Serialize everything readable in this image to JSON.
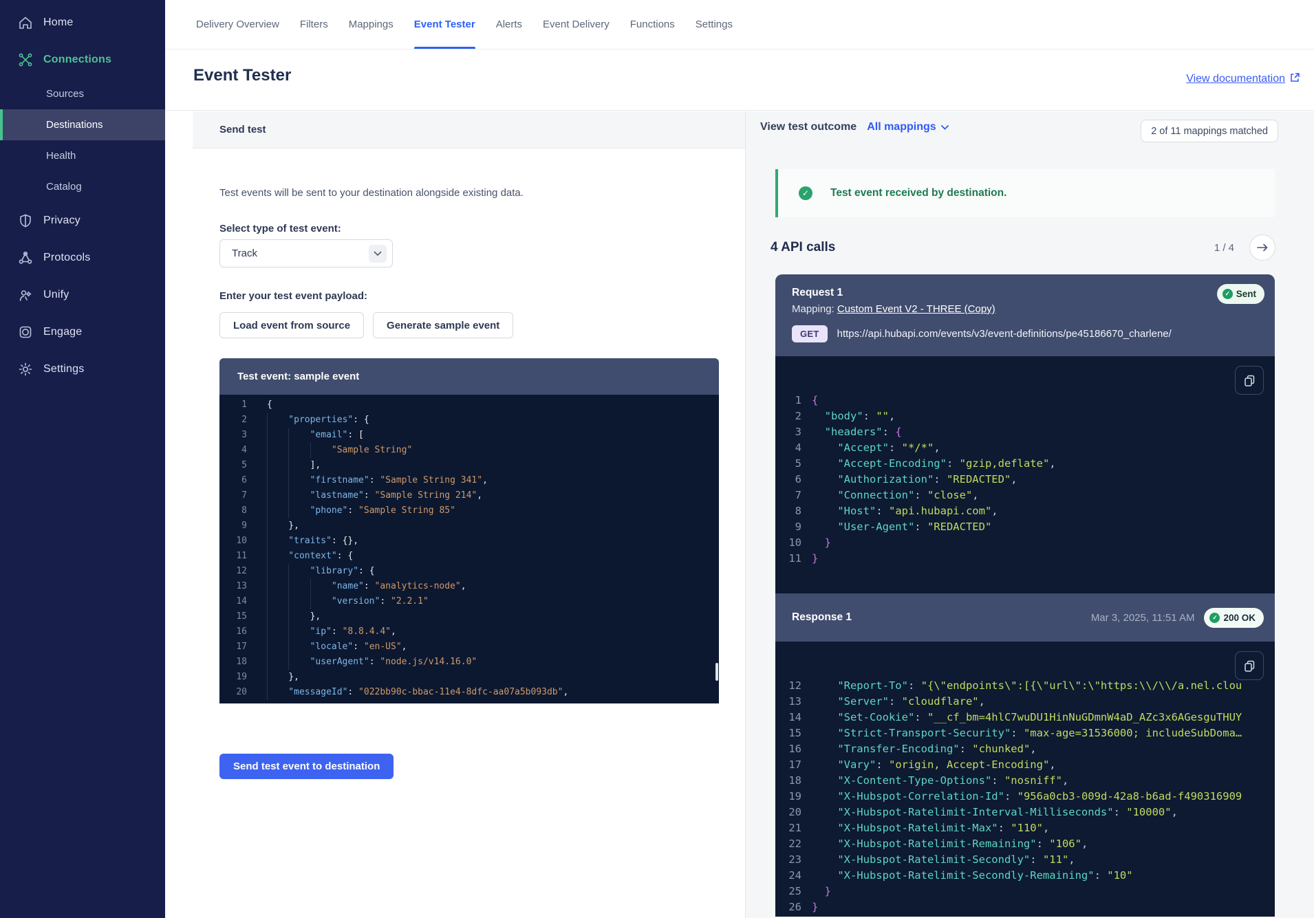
{
  "colors": {
    "brand_green": "#4fc392",
    "accent_blue": "#2e62f5",
    "success_green": "#2aa36d",
    "button_blue": "#3d63f0"
  },
  "sidebar": {
    "main_top": [
      {
        "label": "Home",
        "icon": "home",
        "active": false
      },
      {
        "label": "Connections",
        "icon": "connections",
        "active": true
      }
    ],
    "sub": [
      {
        "label": "Sources",
        "active": false
      },
      {
        "label": "Destinations",
        "active": true
      },
      {
        "label": "Health",
        "active": false
      },
      {
        "label": "Catalog",
        "active": false
      }
    ],
    "main_bottom": [
      {
        "label": "Privacy",
        "icon": "privacy"
      },
      {
        "label": "Protocols",
        "icon": "protocols"
      },
      {
        "label": "Unify",
        "icon": "unify"
      },
      {
        "label": "Engage",
        "icon": "engage"
      },
      {
        "label": "Settings",
        "icon": "settings"
      }
    ]
  },
  "tabs": {
    "items": [
      "Delivery Overview",
      "Filters",
      "Mappings",
      "Event Tester",
      "Alerts",
      "Event Delivery",
      "Functions",
      "Settings"
    ],
    "active": "Event Tester"
  },
  "page": {
    "title": "Event Tester",
    "doc_link": "View documentation"
  },
  "send_test": {
    "header": "Send test",
    "intro": "Test events will be sent to your destination alongside existing data.",
    "select_label": "Select type of test event:",
    "select_value": "Track",
    "payload_label": "Enter your test event payload:",
    "load_button": "Load event from source",
    "generate_button": "Generate sample event",
    "editor_title": "Test event: sample event",
    "send_button": "Send test event to destination",
    "payload_lines": [
      {
        "n": 1,
        "i": 0,
        "t": [
          [
            "b",
            "{"
          ]
        ]
      },
      {
        "n": 2,
        "i": 1,
        "t": [
          [
            "k",
            "\"properties\""
          ],
          [
            "p",
            ": "
          ],
          [
            "b",
            "{"
          ]
        ]
      },
      {
        "n": 3,
        "i": 2,
        "t": [
          [
            "k",
            "\"email\""
          ],
          [
            "p",
            ": "
          ],
          [
            "b",
            "["
          ]
        ]
      },
      {
        "n": 4,
        "i": 3,
        "t": [
          [
            "s",
            "\"Sample String\""
          ]
        ]
      },
      {
        "n": 5,
        "i": 2,
        "t": [
          [
            "b",
            "]"
          ],
          [
            "p",
            ","
          ]
        ]
      },
      {
        "n": 6,
        "i": 2,
        "t": [
          [
            "k",
            "\"firstname\""
          ],
          [
            "p",
            ": "
          ],
          [
            "s",
            "\"Sample String 341\""
          ],
          [
            "p",
            ","
          ]
        ]
      },
      {
        "n": 7,
        "i": 2,
        "t": [
          [
            "k",
            "\"lastname\""
          ],
          [
            "p",
            ": "
          ],
          [
            "s",
            "\"Sample String 214\""
          ],
          [
            "p",
            ","
          ]
        ]
      },
      {
        "n": 8,
        "i": 2,
        "t": [
          [
            "k",
            "\"phone\""
          ],
          [
            "p",
            ": "
          ],
          [
            "s",
            "\"Sample String 85\""
          ]
        ]
      },
      {
        "n": 9,
        "i": 1,
        "t": [
          [
            "b",
            "}"
          ],
          [
            "p",
            ","
          ]
        ]
      },
      {
        "n": 10,
        "i": 1,
        "t": [
          [
            "k",
            "\"traits\""
          ],
          [
            "p",
            ": "
          ],
          [
            "b",
            "{}"
          ],
          [
            "p",
            ","
          ]
        ]
      },
      {
        "n": 11,
        "i": 1,
        "t": [
          [
            "k",
            "\"context\""
          ],
          [
            "p",
            ": "
          ],
          [
            "b",
            "{"
          ]
        ]
      },
      {
        "n": 12,
        "i": 2,
        "t": [
          [
            "k",
            "\"library\""
          ],
          [
            "p",
            ": "
          ],
          [
            "b",
            "{"
          ]
        ]
      },
      {
        "n": 13,
        "i": 3,
        "t": [
          [
            "k",
            "\"name\""
          ],
          [
            "p",
            ": "
          ],
          [
            "s",
            "\"analytics-node\""
          ],
          [
            "p",
            ","
          ]
        ]
      },
      {
        "n": 14,
        "i": 3,
        "t": [
          [
            "k",
            "\"version\""
          ],
          [
            "p",
            ": "
          ],
          [
            "s",
            "\"2.2.1\""
          ]
        ]
      },
      {
        "n": 15,
        "i": 2,
        "t": [
          [
            "b",
            "}"
          ],
          [
            "p",
            ","
          ]
        ]
      },
      {
        "n": 16,
        "i": 2,
        "t": [
          [
            "k",
            "\"ip\""
          ],
          [
            "p",
            ": "
          ],
          [
            "s",
            "\"8.8.4.4\""
          ],
          [
            "p",
            ","
          ]
        ]
      },
      {
        "n": 17,
        "i": 2,
        "t": [
          [
            "k",
            "\"locale\""
          ],
          [
            "p",
            ": "
          ],
          [
            "s",
            "\"en-US\""
          ],
          [
            "p",
            ","
          ]
        ]
      },
      {
        "n": 18,
        "i": 2,
        "t": [
          [
            "k",
            "\"userAgent\""
          ],
          [
            "p",
            ": "
          ],
          [
            "s",
            "\"node.js/v14.16.0\""
          ]
        ]
      },
      {
        "n": 19,
        "i": 1,
        "t": [
          [
            "b",
            "}"
          ],
          [
            "p",
            ","
          ]
        ]
      },
      {
        "n": 20,
        "i": 1,
        "t": [
          [
            "k",
            "\"messageId\""
          ],
          [
            "p",
            ": "
          ],
          [
            "s",
            "\"022bb90c-bbac-11e4-8dfc-aa07a5b093db\""
          ],
          [
            "p",
            ","
          ]
        ]
      }
    ]
  },
  "outcome": {
    "header": "View test outcome",
    "filter": "All mappings",
    "match_badge": "2 of 11 mappings matched",
    "success_message": "Test event received by destination.",
    "api_calls": "4 API calls",
    "pager": "1 / 4",
    "request": {
      "title": "Request 1",
      "status": "Sent",
      "mapping_label": "Mapping: ",
      "mapping_link": "Custom Event V2 - THREE (Copy)",
      "method": "GET",
      "url": "https://api.hubapi.com/events/v3/event-definitions/pe45186670_charlene/",
      "lines": [
        {
          "n": 1,
          "i": 0,
          "t": [
            [
              "b",
              "{"
            ]
          ]
        },
        {
          "n": 2,
          "i": 1,
          "t": [
            [
              "k",
              "\"body\""
            ],
            [
              "p",
              ": "
            ],
            [
              "v",
              "\"\""
            ],
            [
              "p",
              ","
            ]
          ]
        },
        {
          "n": 3,
          "i": 1,
          "t": [
            [
              "k",
              "\"headers\""
            ],
            [
              "p",
              ": "
            ],
            [
              "b",
              "{"
            ]
          ]
        },
        {
          "n": 4,
          "i": 2,
          "t": [
            [
              "k",
              "\"Accept\""
            ],
            [
              "p",
              ": "
            ],
            [
              "v",
              "\"*/*\""
            ],
            [
              "p",
              ","
            ]
          ]
        },
        {
          "n": 5,
          "i": 2,
          "t": [
            [
              "k",
              "\"Accept-Encoding\""
            ],
            [
              "p",
              ": "
            ],
            [
              "v",
              "\"gzip,deflate\""
            ],
            [
              "p",
              ","
            ]
          ]
        },
        {
          "n": 6,
          "i": 2,
          "t": [
            [
              "k",
              "\"Authorization\""
            ],
            [
              "p",
              ": "
            ],
            [
              "v",
              "\"REDACTED\""
            ],
            [
              "p",
              ","
            ]
          ]
        },
        {
          "n": 7,
          "i": 2,
          "t": [
            [
              "k",
              "\"Connection\""
            ],
            [
              "p",
              ": "
            ],
            [
              "v",
              "\"close\""
            ],
            [
              "p",
              ","
            ]
          ]
        },
        {
          "n": 8,
          "i": 2,
          "t": [
            [
              "k",
              "\"Host\""
            ],
            [
              "p",
              ": "
            ],
            [
              "v",
              "\"api.hubapi.com\""
            ],
            [
              "p",
              ","
            ]
          ]
        },
        {
          "n": 9,
          "i": 2,
          "t": [
            [
              "k",
              "\"User-Agent\""
            ],
            [
              "p",
              ": "
            ],
            [
              "v",
              "\"REDACTED\""
            ]
          ]
        },
        {
          "n": 10,
          "i": 1,
          "t": [
            [
              "b",
              "}"
            ]
          ]
        },
        {
          "n": 11,
          "i": 0,
          "t": [
            [
              "b",
              "}"
            ]
          ]
        }
      ]
    },
    "response": {
      "title": "Response 1",
      "timestamp": "Mar 3, 2025, 11:51 AM",
      "status": "200 OK",
      "lines": [
        {
          "n": 12,
          "i": 2,
          "t": [
            [
              "k",
              "\"Report-To\""
            ],
            [
              "p",
              ": "
            ],
            [
              "v",
              "\"{\\\"endpoints\\\":[{\\\"url\\\":\\\"https:\\\\/\\\\/a.nel.clou"
            ]
          ]
        },
        {
          "n": 13,
          "i": 2,
          "t": [
            [
              "k",
              "\"Server\""
            ],
            [
              "p",
              ": "
            ],
            [
              "v",
              "\"cloudflare\""
            ],
            [
              "p",
              ","
            ]
          ]
        },
        {
          "n": 14,
          "i": 2,
          "t": [
            [
              "k",
              "\"Set-Cookie\""
            ],
            [
              "p",
              ": "
            ],
            [
              "v",
              "\"__cf_bm=4hlC7wuDU1HinNuGDmnW4aD_AZc3x6AGesguTHUY"
            ]
          ]
        },
        {
          "n": 15,
          "i": 2,
          "t": [
            [
              "k",
              "\"Strict-Transport-Security\""
            ],
            [
              "p",
              ": "
            ],
            [
              "v",
              "\"max-age=31536000; includeSubDoma…"
            ]
          ]
        },
        {
          "n": 16,
          "i": 2,
          "t": [
            [
              "k",
              "\"Transfer-Encoding\""
            ],
            [
              "p",
              ": "
            ],
            [
              "v",
              "\"chunked\""
            ],
            [
              "p",
              ","
            ]
          ]
        },
        {
          "n": 17,
          "i": 2,
          "t": [
            [
              "k",
              "\"Vary\""
            ],
            [
              "p",
              ": "
            ],
            [
              "v",
              "\"origin, Accept-Encoding\""
            ],
            [
              "p",
              ","
            ]
          ]
        },
        {
          "n": 18,
          "i": 2,
          "t": [
            [
              "k",
              "\"X-Content-Type-Options\""
            ],
            [
              "p",
              ": "
            ],
            [
              "v",
              "\"nosniff\""
            ],
            [
              "p",
              ","
            ]
          ]
        },
        {
          "n": 19,
          "i": 2,
          "t": [
            [
              "k",
              "\"X-Hubspot-Correlation-Id\""
            ],
            [
              "p",
              ": "
            ],
            [
              "v",
              "\"956a0cb3-009d-42a8-b6ad-f490316909"
            ]
          ]
        },
        {
          "n": 20,
          "i": 2,
          "t": [
            [
              "k",
              "\"X-Hubspot-Ratelimit-Interval-Milliseconds\""
            ],
            [
              "p",
              ": "
            ],
            [
              "v",
              "\"10000\""
            ],
            [
              "p",
              ","
            ]
          ]
        },
        {
          "n": 21,
          "i": 2,
          "t": [
            [
              "k",
              "\"X-Hubspot-Ratelimit-Max\""
            ],
            [
              "p",
              ": "
            ],
            [
              "v",
              "\"110\""
            ],
            [
              "p",
              ","
            ]
          ]
        },
        {
          "n": 22,
          "i": 2,
          "t": [
            [
              "k",
              "\"X-Hubspot-Ratelimit-Remaining\""
            ],
            [
              "p",
              ": "
            ],
            [
              "v",
              "\"106\""
            ],
            [
              "p",
              ","
            ]
          ]
        },
        {
          "n": 23,
          "i": 2,
          "t": [
            [
              "k",
              "\"X-Hubspot-Ratelimit-Secondly\""
            ],
            [
              "p",
              ": "
            ],
            [
              "v",
              "\"11\""
            ],
            [
              "p",
              ","
            ]
          ]
        },
        {
          "n": 24,
          "i": 2,
          "t": [
            [
              "k",
              "\"X-Hubspot-Ratelimit-Secondly-Remaining\""
            ],
            [
              "p",
              ": "
            ],
            [
              "v",
              "\"10\""
            ]
          ]
        },
        {
          "n": 25,
          "i": 1,
          "t": [
            [
              "b",
              "}"
            ]
          ]
        },
        {
          "n": 26,
          "i": 0,
          "t": [
            [
              "b",
              "}"
            ]
          ]
        }
      ]
    }
  }
}
